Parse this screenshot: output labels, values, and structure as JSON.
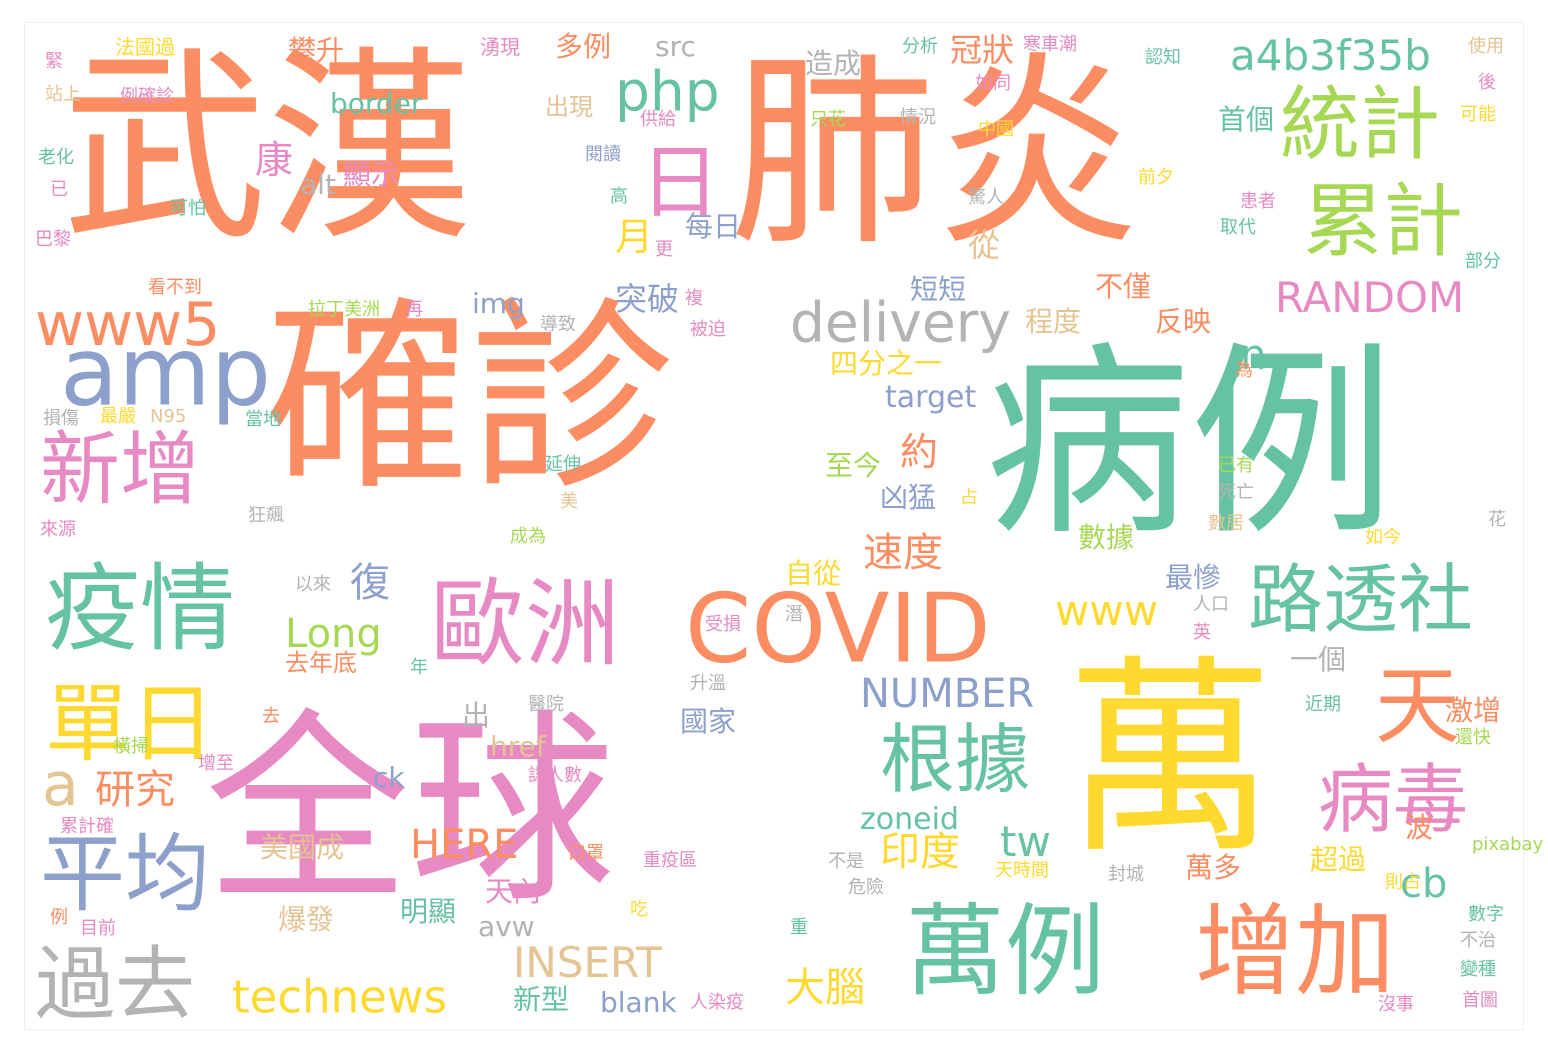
{
  "palette": {
    "orange": "#fc8d62",
    "green": "#66c2a5",
    "blue": "#8da0cb",
    "pink": "#e78ac3",
    "lime": "#a6d854",
    "yellow": "#ffd92f",
    "tan": "#e5c494",
    "gray": "#b3b3b3"
  },
  "words": [
    {
      "text": "武漢",
      "c": "orange"
    },
    {
      "text": "肺炎",
      "c": "orange"
    },
    {
      "text": "確診",
      "c": "orange"
    },
    {
      "text": "病例",
      "c": "green"
    },
    {
      "text": "全球",
      "c": "pink"
    },
    {
      "text": "萬",
      "c": "yellow"
    },
    {
      "text": "萬例",
      "c": "green"
    },
    {
      "text": "增加",
      "c": "orange"
    },
    {
      "text": "統計",
      "c": "lime"
    },
    {
      "text": "累計",
      "c": "lime"
    },
    {
      "text": "疫情",
      "c": "green"
    },
    {
      "text": "歐洲",
      "c": "pink"
    },
    {
      "text": "COVID",
      "c": "orange"
    },
    {
      "text": "路透社",
      "c": "green"
    },
    {
      "text": "根據",
      "c": "green"
    },
    {
      "text": "病毒",
      "c": "pink"
    },
    {
      "text": "新增",
      "c": "pink"
    },
    {
      "text": "平均",
      "c": "blue"
    },
    {
      "text": "過去",
      "c": "gray"
    },
    {
      "text": "單日",
      "c": "yellow"
    },
    {
      "text": "amp",
      "c": "blue"
    },
    {
      "text": "www5",
      "c": "orange"
    },
    {
      "text": "天",
      "c": "orange"
    },
    {
      "text": "日",
      "c": "pink"
    },
    {
      "text": "php",
      "c": "green"
    },
    {
      "text": "a4b3f35b",
      "c": "green"
    },
    {
      "text": "delivery",
      "c": "gray"
    },
    {
      "text": "RANDOM",
      "c": "pink"
    },
    {
      "text": "www",
      "c": "yellow"
    },
    {
      "text": "NUMBER",
      "c": "blue"
    },
    {
      "text": "technews",
      "c": "yellow"
    },
    {
      "text": "INSERT",
      "c": "tan"
    },
    {
      "text": "HERE",
      "c": "orange"
    },
    {
      "text": "Long",
      "c": "lime"
    },
    {
      "text": "a",
      "c": "tan"
    },
    {
      "text": "研究",
      "c": "orange"
    },
    {
      "text": "tw",
      "c": "green"
    },
    {
      "text": "n",
      "c": "green"
    },
    {
      "text": "cb",
      "c": "green"
    },
    {
      "text": "印度",
      "c": "yellow"
    },
    {
      "text": "大腦",
      "c": "yellow"
    },
    {
      "text": "速度",
      "c": "orange"
    },
    {
      "text": "復",
      "c": "blue"
    },
    {
      "text": "康",
      "c": "pink"
    },
    {
      "text": "月",
      "c": "yellow"
    },
    {
      "text": "從",
      "c": "tan"
    },
    {
      "text": "約",
      "c": "orange"
    },
    {
      "text": "zoneid",
      "c": "green"
    },
    {
      "text": "target",
      "c": "blue"
    },
    {
      "text": "border",
      "c": "green"
    },
    {
      "text": "href",
      "c": "tan"
    },
    {
      "text": "img",
      "c": "blue"
    },
    {
      "text": "src",
      "c": "gray"
    },
    {
      "text": "alt",
      "c": "gray"
    },
    {
      "text": "ck",
      "c": "blue"
    },
    {
      "text": "avw",
      "c": "gray"
    },
    {
      "text": "blank",
      "c": "blue"
    },
    {
      "text": "突破",
      "c": "blue"
    },
    {
      "text": "短短",
      "c": "blue"
    },
    {
      "text": "不僅",
      "c": "orange"
    },
    {
      "text": "程度",
      "c": "tan"
    },
    {
      "text": "反映",
      "c": "orange"
    },
    {
      "text": "四分之一",
      "c": "yellow"
    },
    {
      "text": "至今",
      "c": "lime"
    },
    {
      "text": "凶猛",
      "c": "blue"
    },
    {
      "text": "自從",
      "c": "yellow"
    },
    {
      "text": "最慘",
      "c": "blue"
    },
    {
      "text": "一個",
      "c": "gray"
    },
    {
      "text": "國家",
      "c": "blue"
    },
    {
      "text": "激增",
      "c": "orange"
    },
    {
      "text": "超過",
      "c": "yellow"
    },
    {
      "text": "波",
      "c": "orange"
    },
    {
      "text": "萬多",
      "c": "orange"
    },
    {
      "text": "天內",
      "c": "pink"
    },
    {
      "text": "爆發",
      "c": "tan"
    },
    {
      "text": "明顯",
      "c": "green"
    },
    {
      "text": "新型",
      "c": "green"
    },
    {
      "text": "美國成",
      "c": "tan"
    },
    {
      "text": "出",
      "c": "gray"
    },
    {
      "text": "每日",
      "c": "blue"
    },
    {
      "text": "冠狀",
      "c": "orange"
    },
    {
      "text": "造成",
      "c": "gray"
    },
    {
      "text": "首個",
      "c": "green"
    },
    {
      "text": "顯示",
      "c": "pink"
    },
    {
      "text": "出現",
      "c": "tan"
    },
    {
      "text": "多例",
      "c": "orange"
    },
    {
      "text": "攀升",
      "c": "orange"
    },
    {
      "text": "去年底",
      "c": "orange"
    },
    {
      "text": "拉丁美洲",
      "c": "lime"
    },
    {
      "text": "數據",
      "c": "lime"
    },
    {
      "text": "法國過",
      "c": "yellow"
    },
    {
      "text": "例確診",
      "c": "pink"
    },
    {
      "text": "湧現",
      "c": "pink"
    },
    {
      "text": "分析",
      "c": "green"
    },
    {
      "text": "寒車潮",
      "c": "pink"
    },
    {
      "text": "認知",
      "c": "green"
    },
    {
      "text": "使用",
      "c": "tan"
    },
    {
      "text": "緊",
      "c": "pink"
    },
    {
      "text": "站上",
      "c": "tan"
    },
    {
      "text": "老化",
      "c": "green"
    },
    {
      "text": "已",
      "c": "pink"
    },
    {
      "text": "巴黎",
      "c": "pink"
    },
    {
      "text": "可怕",
      "c": "green"
    },
    {
      "text": "看不到",
      "c": "orange"
    },
    {
      "text": "再",
      "c": "pink"
    },
    {
      "text": "導致",
      "c": "gray"
    },
    {
      "text": "被迫",
      "c": "pink"
    },
    {
      "text": "損傷",
      "c": "gray"
    },
    {
      "text": "最嚴",
      "c": "yellow"
    },
    {
      "text": "N95",
      "c": "tan"
    },
    {
      "text": "當地",
      "c": "green"
    },
    {
      "text": "延伸",
      "c": "green"
    },
    {
      "text": "狂飆",
      "c": "gray"
    },
    {
      "text": "來源",
      "c": "pink"
    },
    {
      "text": "成為",
      "c": "lime"
    },
    {
      "text": "以來",
      "c": "gray"
    },
    {
      "text": "受損",
      "c": "pink"
    },
    {
      "text": "年",
      "c": "green"
    },
    {
      "text": "去",
      "c": "orange"
    },
    {
      "text": "升溫",
      "c": "gray"
    },
    {
      "text": "醫院",
      "c": "gray"
    },
    {
      "text": "橫掃",
      "c": "lime"
    },
    {
      "text": "增至",
      "c": "pink"
    },
    {
      "text": "累計確",
      "c": "pink"
    },
    {
      "text": "認人數",
      "c": "pink"
    },
    {
      "text": "口罩",
      "c": "orange"
    },
    {
      "text": "重疫區",
      "c": "pink"
    },
    {
      "text": "吃",
      "c": "yellow"
    },
    {
      "text": "目前",
      "c": "pink"
    },
    {
      "text": "例",
      "c": "orange"
    },
    {
      "text": "人染疫",
      "c": "pink"
    },
    {
      "text": "危險",
      "c": "gray"
    },
    {
      "text": "不是",
      "c": "gray"
    },
    {
      "text": "天時間",
      "c": "yellow"
    },
    {
      "text": "封城",
      "c": "gray"
    },
    {
      "text": "則占",
      "c": "yellow"
    },
    {
      "text": "pixabay",
      "c": "lime"
    },
    {
      "text": "數字",
      "c": "green"
    },
    {
      "text": "不治",
      "c": "gray"
    },
    {
      "text": "變種",
      "c": "green"
    },
    {
      "text": "首圖",
      "c": "pink"
    },
    {
      "text": "沒事",
      "c": "pink"
    },
    {
      "text": "重",
      "c": "green"
    },
    {
      "text": "近期",
      "c": "green"
    },
    {
      "text": "還快",
      "c": "lime"
    },
    {
      "text": "如今",
      "c": "yellow"
    },
    {
      "text": "花",
      "c": "gray"
    },
    {
      "text": "數居",
      "c": "tan"
    },
    {
      "text": "死亡",
      "c": "gray"
    },
    {
      "text": "已有",
      "c": "lime"
    },
    {
      "text": "為",
      "c": "orange"
    },
    {
      "text": "患者",
      "c": "pink"
    },
    {
      "text": "取代",
      "c": "green"
    },
    {
      "text": "部分",
      "c": "green"
    },
    {
      "text": "前夕",
      "c": "yellow"
    },
    {
      "text": "驚人",
      "c": "gray"
    },
    {
      "text": "中國",
      "c": "yellow"
    },
    {
      "text": "情況",
      "c": "gray"
    },
    {
      "text": "只花",
      "c": "lime"
    },
    {
      "text": "如同",
      "c": "pink"
    },
    {
      "text": "可能",
      "c": "yellow"
    },
    {
      "text": "後",
      "c": "pink"
    },
    {
      "text": "閱讀",
      "c": "blue"
    },
    {
      "text": "供給",
      "c": "pink"
    },
    {
      "text": "高",
      "c": "green"
    },
    {
      "text": "更",
      "c": "pink"
    },
    {
      "text": "複",
      "c": "pink"
    },
    {
      "text": "潛",
      "c": "gray"
    },
    {
      "text": "美",
      "c": "tan"
    },
    {
      "text": "占",
      "c": "yellow"
    },
    {
      "text": "人口",
      "c": "gray"
    },
    {
      "text": "英",
      "c": "pink"
    }
  ]
}
